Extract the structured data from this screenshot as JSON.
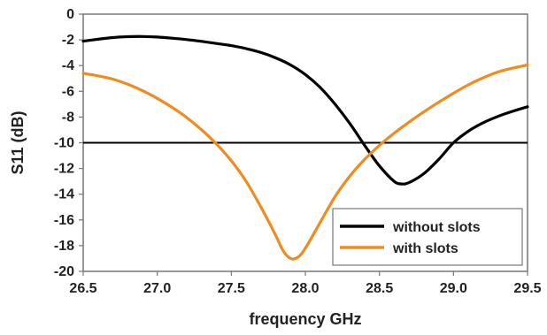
{
  "chart_data": {
    "type": "line",
    "title": "",
    "xlabel": "frequency GHz",
    "ylabel": "S11 (dB)",
    "xlim": [
      26.5,
      29.5
    ],
    "ylim": [
      -20,
      0
    ],
    "x_ticks": [
      "26.5",
      "27.0",
      "27.5",
      "28.0",
      "28.5",
      "29.0",
      "29.5"
    ],
    "y_ticks": [
      "0",
      "-2",
      "-4",
      "-6",
      "-8",
      "-10",
      "-12",
      "-14",
      "-16",
      "-18",
      "-20"
    ],
    "grid": false,
    "legend_position": "bottom-right",
    "reference_line": {
      "y": -10,
      "color": "#000000"
    },
    "series": [
      {
        "name": "without slots",
        "color": "#000000",
        "points": [
          [
            26.5,
            -2.1
          ],
          [
            26.6,
            -1.95
          ],
          [
            26.7,
            -1.82
          ],
          [
            26.8,
            -1.75
          ],
          [
            26.9,
            -1.74
          ],
          [
            27.0,
            -1.78
          ],
          [
            27.1,
            -1.87
          ],
          [
            27.2,
            -1.98
          ],
          [
            27.3,
            -2.12
          ],
          [
            27.4,
            -2.28
          ],
          [
            27.5,
            -2.45
          ],
          [
            27.6,
            -2.68
          ],
          [
            27.7,
            -2.98
          ],
          [
            27.8,
            -3.4
          ],
          [
            27.9,
            -3.95
          ],
          [
            28.0,
            -4.7
          ],
          [
            28.1,
            -5.7
          ],
          [
            28.2,
            -7.0
          ],
          [
            28.3,
            -8.5
          ],
          [
            28.4,
            -10.2
          ],
          [
            28.5,
            -11.8
          ],
          [
            28.6,
            -13.0
          ],
          [
            28.65,
            -13.2
          ],
          [
            28.7,
            -13.1
          ],
          [
            28.8,
            -12.4
          ],
          [
            28.9,
            -11.3
          ],
          [
            29.0,
            -10.0
          ],
          [
            29.1,
            -9.1
          ],
          [
            29.2,
            -8.45
          ],
          [
            29.3,
            -7.95
          ],
          [
            29.4,
            -7.55
          ],
          [
            29.5,
            -7.2
          ]
        ]
      },
      {
        "name": "with slots",
        "color": "#f08c1e",
        "points": [
          [
            26.5,
            -4.6
          ],
          [
            26.6,
            -4.8
          ],
          [
            26.7,
            -5.05
          ],
          [
            26.8,
            -5.45
          ],
          [
            26.9,
            -5.95
          ],
          [
            27.0,
            -6.55
          ],
          [
            27.1,
            -7.25
          ],
          [
            27.2,
            -8.05
          ],
          [
            27.3,
            -9.0
          ],
          [
            27.4,
            -10.1
          ],
          [
            27.5,
            -11.4
          ],
          [
            27.6,
            -13.0
          ],
          [
            27.7,
            -15.0
          ],
          [
            27.8,
            -17.2
          ],
          [
            27.85,
            -18.4
          ],
          [
            27.9,
            -19.0
          ],
          [
            27.95,
            -18.9
          ],
          [
            28.0,
            -18.2
          ],
          [
            28.1,
            -16.2
          ],
          [
            28.2,
            -14.2
          ],
          [
            28.3,
            -12.6
          ],
          [
            28.4,
            -11.3
          ],
          [
            28.5,
            -10.2
          ],
          [
            28.6,
            -9.25
          ],
          [
            28.7,
            -8.4
          ],
          [
            28.8,
            -7.6
          ],
          [
            28.9,
            -6.85
          ],
          [
            29.0,
            -6.15
          ],
          [
            29.1,
            -5.5
          ],
          [
            29.2,
            -4.95
          ],
          [
            29.3,
            -4.5
          ],
          [
            29.4,
            -4.2
          ],
          [
            29.5,
            -3.95
          ]
        ]
      }
    ]
  }
}
